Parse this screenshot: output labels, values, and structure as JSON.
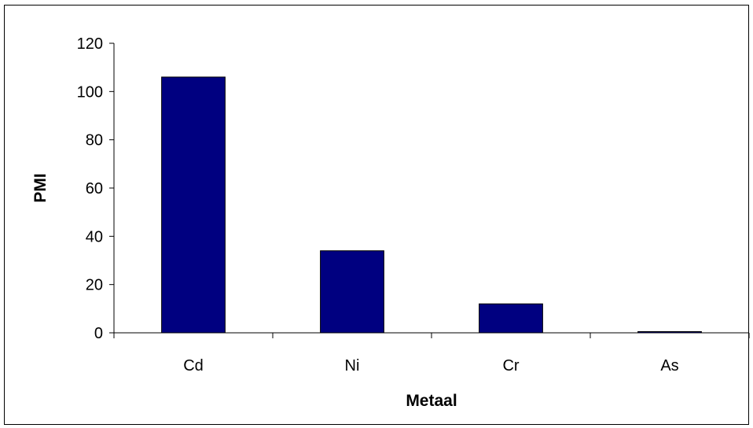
{
  "chart_data": {
    "type": "bar",
    "categories": [
      "Cd",
      "Ni",
      "Cr",
      "As"
    ],
    "values": [
      106,
      34,
      12,
      0.5
    ],
    "title": "",
    "xlabel": "Metaal",
    "ylabel": "PMI",
    "ylim": [
      0,
      120
    ],
    "yticks": [
      0,
      20,
      40,
      60,
      80,
      100,
      120
    ],
    "grid": false,
    "legend": "none",
    "bar_color": "#000080",
    "bar_outline": "#000000"
  }
}
